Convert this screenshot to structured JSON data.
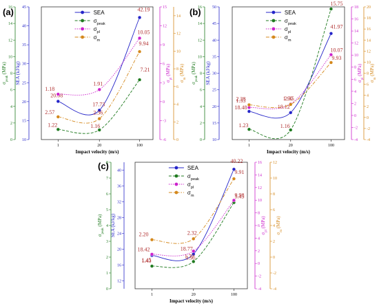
{
  "colors": {
    "SEA": "#2424c8",
    "peak": "#1f7a1f",
    "pl": "#cc22cc",
    "m": "#d4881c",
    "labels": "#b03030",
    "axis": "#333333"
  },
  "legend": [
    {
      "base": "SEA",
      "sub": ""
    },
    {
      "base": "σ",
      "sub": "peak"
    },
    {
      "base": "σ",
      "sub": "pl"
    },
    {
      "base": "σ",
      "sub": "m"
    }
  ],
  "xlabel": "Impact velocity (m/s)",
  "chart_data": [
    {
      "panel": "(a)",
      "type": "line",
      "x": [
        1,
        20,
        100
      ],
      "xticklabels": [
        "1",
        "20",
        "100"
      ],
      "series": [
        {
          "name": "SEA",
          "values": [
            20.08,
            17.73,
            42.19
          ],
          "labels": [
            "20.08",
            "17.73",
            "42.19"
          ]
        },
        {
          "name": "σpeak",
          "values": [
            1.22,
            1.16,
            7.21
          ],
          "labels": [
            "1.22",
            "1.16",
            "7.21"
          ]
        },
        {
          "name": "σpl",
          "values": [
            1.18,
            1.91,
            10.05
          ],
          "labels": [
            "1.18",
            "1.91",
            "10.05"
          ]
        },
        {
          "name": "σm",
          "values": [
            2.57,
            2.36,
            9.94
          ],
          "labels": [
            "2.57",
            "2.36",
            "9.94"
          ]
        }
      ],
      "axes": {
        "peak": {
          "label": "σpeak (MPa)",
          "lim": [
            0,
            16
          ],
          "ticks": [
            0,
            2,
            4,
            6,
            8,
            10,
            12,
            14,
            16
          ]
        },
        "SEA": {
          "label": "SEA (kJ/kg)",
          "lim": [
            10,
            45
          ],
          "ticks": [
            10,
            15,
            20,
            25,
            30,
            35,
            40,
            45
          ]
        },
        "pl": {
          "label": "σpl (MPa)",
          "lim": [
            -6,
            15
          ],
          "ticks": [
            -6,
            -3,
            0,
            3,
            6,
            9,
            12,
            15
          ]
        },
        "m": {
          "label": "σm (MPa)",
          "lim": [
            0,
            15
          ],
          "ticks": [
            0,
            2,
            4,
            6,
            8,
            10,
            12,
            14
          ]
        }
      }
    },
    {
      "panel": "(b)",
      "type": "line",
      "x": [
        1,
        20,
        100
      ],
      "xticklabels": [
        "1",
        "20",
        "100"
      ],
      "series": [
        {
          "name": "SEA",
          "values": [
            18.48,
            18.12,
            41.97
          ],
          "labels": [
            "18.48",
            "18.12",
            "41.97"
          ]
        },
        {
          "name": "σpeak",
          "values": [
            1.23,
            1.16,
            15.75
          ],
          "labels": [
            "1.23",
            "1.16",
            "15.75"
          ]
        },
        {
          "name": "σpl",
          "values": [
            1.33,
            1.9,
            10.07
          ],
          "labels": [
            "1.33",
            "1.90",
            "10.07"
          ]
        },
        {
          "name": "σm",
          "values": [
            2.28,
            2.35,
            9.93
          ],
          "labels": [
            "2.28",
            "2.35",
            "9.93"
          ]
        }
      ],
      "axes": {
        "peak": {
          "label": "σpeak (MPa)",
          "lim": [
            0,
            16
          ],
          "ticks": [
            0,
            2,
            4,
            6,
            8,
            10,
            12,
            14,
            16
          ]
        },
        "SEA": {
          "label": "SEA (kJ/kg)",
          "lim": [
            10,
            50
          ],
          "ticks": [
            10,
            15,
            20,
            25,
            30,
            35,
            40,
            45,
            50
          ]
        },
        "pl": {
          "label": "σpl (MPa)",
          "lim": [
            -4,
            18
          ],
          "ticks": [
            -4,
            -2,
            0,
            2,
            4,
            6,
            8,
            10,
            12,
            14,
            16,
            18
          ]
        },
        "m": {
          "label": "σm (MPa)",
          "lim": [
            -4,
            20
          ],
          "ticks": [
            -4,
            -2,
            0,
            2,
            4,
            6,
            8,
            10,
            12,
            14,
            16,
            18,
            20
          ]
        }
      }
    },
    {
      "panel": "(c)",
      "type": "line",
      "x": [
        1,
        20,
        100
      ],
      "xticklabels": [
        "1",
        "20",
        "100"
      ],
      "series": [
        {
          "name": "SEA",
          "values": [
            18.42,
            18.77,
            40.22
          ],
          "labels": [
            "18.42",
            "18.77",
            "40.22"
          ]
        },
        {
          "name": "σpeak",
          "values": [
            1.43,
            1.72,
            5.45
          ],
          "labels": [
            "1.43",
            "1.72",
            "5.45"
          ]
        },
        {
          "name": "σpl",
          "values": [
            1.45,
            1.95,
            9.98
          ],
          "labels": [
            "1.45",
            "1.95",
            "9.98"
          ]
        },
        {
          "name": "σm",
          "values": [
            2.2,
            2.32,
            9.91
          ],
          "labels": [
            "2.20",
            "2.32",
            "9.91"
          ]
        }
      ],
      "axes": {
        "peak": {
          "label": "σpeak (MPa)",
          "lim": [
            0,
            8
          ],
          "ticks": [
            0,
            1,
            2,
            3,
            4,
            5,
            6,
            7,
            8
          ]
        },
        "SEA": {
          "label": "SEA (kJ/kg)",
          "lim": [
            10,
            42
          ],
          "ticks": [
            12,
            16,
            20,
            24,
            28,
            32,
            36,
            40
          ]
        },
        "pl": {
          "label": "σpl (MPa)",
          "lim": [
            -4,
            16
          ],
          "ticks": [
            -4,
            -2,
            0,
            2,
            4,
            6,
            8,
            10,
            12,
            14,
            16
          ]
        },
        "m": {
          "label": "σm (MPa)",
          "lim": [
            -4,
            12
          ],
          "ticks": [
            -4,
            -2,
            0,
            2,
            4,
            6,
            8,
            10,
            12
          ]
        }
      }
    }
  ]
}
